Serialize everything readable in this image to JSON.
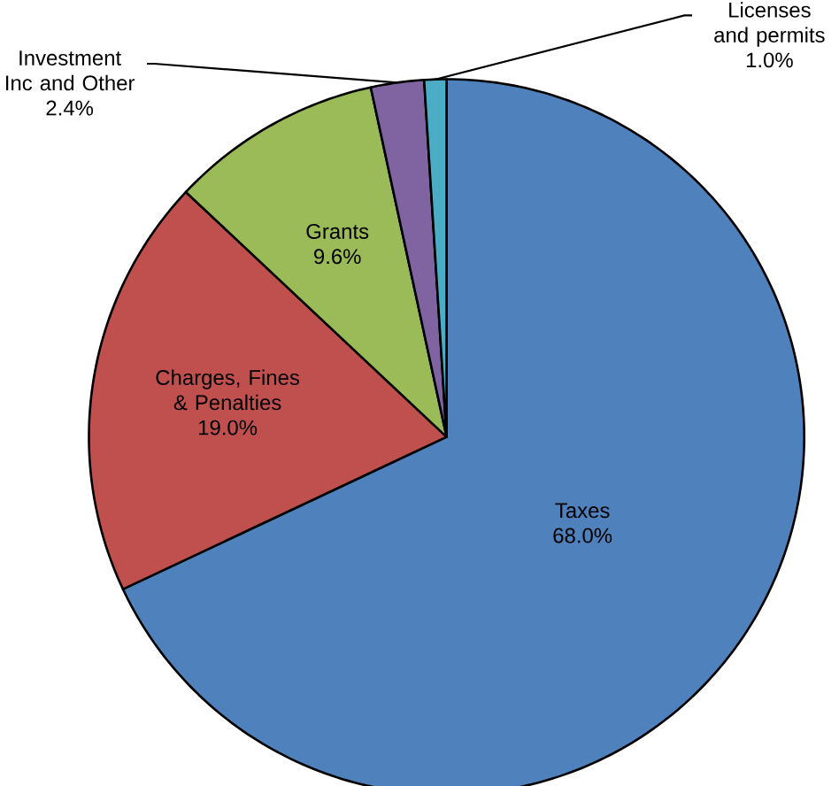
{
  "chart_data": {
    "type": "pie",
    "categories": [
      "Taxes",
      "Charges, Fines & Penalties",
      "Grants",
      "Investment Inc and Other",
      "Licenses and permits"
    ],
    "values": [
      68.0,
      19.0,
      9.6,
      2.4,
      1.0
    ],
    "value_labels": [
      "68.0%",
      "19.0%",
      "9.6%",
      "2.4%",
      "1.0%"
    ],
    "colors": [
      "#4f81bd",
      "#c0504d",
      "#9bbb59",
      "#8064a2",
      "#4bacc6"
    ]
  }
}
